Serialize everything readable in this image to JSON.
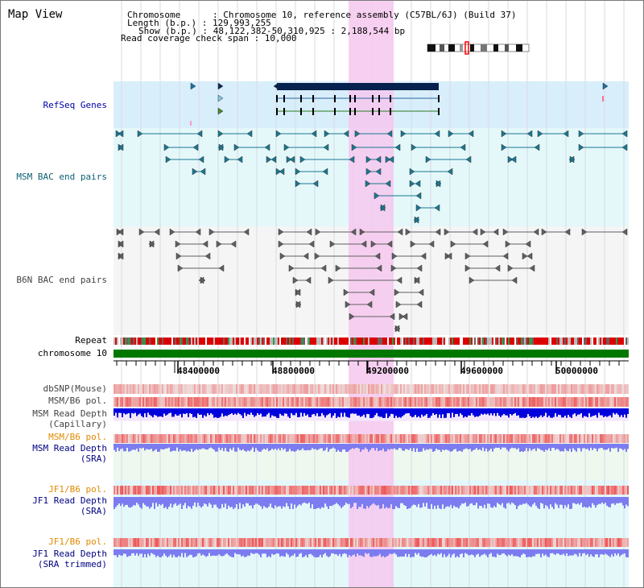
{
  "header": {
    "title": "Map View",
    "chromosome_line": "Chromosome      : Chromosome 10, reference assembly (C57BL/6J) (Build 37)",
    "length_line": "Length (b.p.) : 129,993,255",
    "show_line": "Show (b.p.) : 48,122,382-50,310,925 : 2,188,544 bp",
    "coverage_line": "Read coverage check span : 10,000"
  },
  "tracks": {
    "refseq": "RefSeq Genes",
    "msm_bac": "MSM BAC end pairs",
    "b6n_bac": "B6N BAC end pairs",
    "repeat": "Repeat",
    "chromosome": "chromosome 10",
    "dbsnp": "dbSNP(Mouse)",
    "msm_b6_pol": "MSM/B6 pol.",
    "msm_read_depth_cap_1": "MSM Read Depth",
    "msm_read_depth_cap_2": "(Capillary)",
    "msm_b6_pol_sra": "MSM/B6 pol.",
    "msm_read_depth_sra_1": "MSM Read Depth",
    "msm_read_depth_sra_2": "(SRA)",
    "jf1_b6_pol": "JF1/B6 pol.",
    "jf1_read_depth_sra_1": "JF1 Read Depth",
    "jf1_read_depth_sra_2": "(SRA)",
    "jf1_b6_pol_trim": "JF1/B6 pol.",
    "jf1_read_depth_trim_1": "JF1 Read Depth",
    "jf1_read_depth_trim_2": "(SRA trimmed)"
  },
  "ruler": {
    "ticks": [
      "48400000",
      "48800000",
      "49200000",
      "49600000",
      "50000000"
    ]
  },
  "colors": {
    "highlight": "#f6c8ee",
    "refseq_bg": "#d8eefa",
    "msm_bg": "#e4f8fa",
    "chromosome_bar": "#007800",
    "repeat_red": "#dd0000",
    "depth_blue": "#0000dd",
    "depth_light": "#7c7cf0",
    "pol_red": "#ee3030"
  }
}
